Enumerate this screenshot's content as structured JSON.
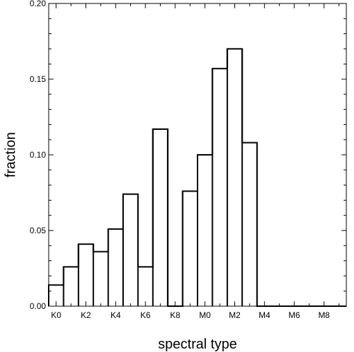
{
  "chart_data": {
    "type": "bar",
    "style": "step-histogram",
    "xlabel": "spectral type",
    "ylabel": "fraction",
    "categories": [
      "K0",
      "K1",
      "K2",
      "K3",
      "K4",
      "K5",
      "K6",
      "K7",
      "K8",
      "K9",
      "M0",
      "M1",
      "M2",
      "M3",
      "M4",
      "M5",
      "M6",
      "M7",
      "M8",
      "M9"
    ],
    "values": [
      0.014,
      0.026,
      0.041,
      0.036,
      0.051,
      0.074,
      0.026,
      0.117,
      0.0,
      0.076,
      0.1,
      0.157,
      0.17,
      0.108,
      0.0,
      0.0,
      0.0,
      0.0,
      0.0,
      0.0
    ],
    "x_tick_labels": [
      "K0",
      "K2",
      "K4",
      "K6",
      "K8",
      "M0",
      "M2",
      "M4",
      "M6",
      "M8"
    ],
    "y_tick_labels": [
      "0.00",
      "0.05",
      "0.10",
      "0.15",
      "0.20"
    ],
    "ylim": [
      0,
      0.2
    ],
    "grid": false,
    "line_color": "#000000"
  }
}
